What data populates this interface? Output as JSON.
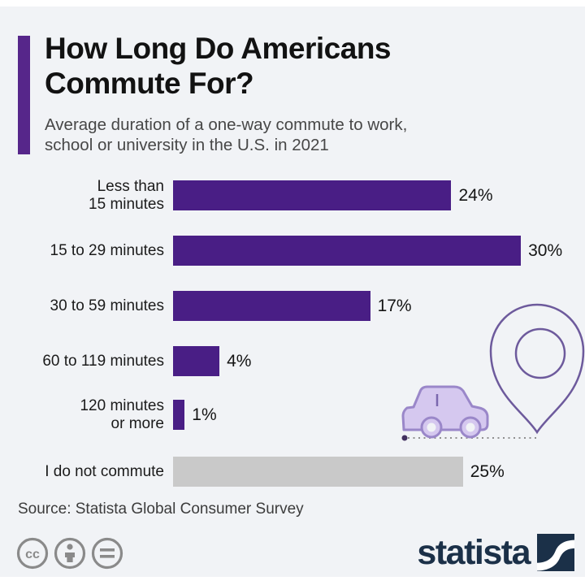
{
  "header": {
    "title": "How Long Do Americans\nCommute For?",
    "subtitle": "Average duration of a one-way commute to work,\nschool or university in the U.S. in 2021"
  },
  "chart_data": {
    "type": "bar",
    "orientation": "horizontal",
    "unit": "%",
    "categories": [
      "Less than 15 minutes",
      "15 to 29 minutes",
      "30 to 59 minutes",
      "60 to 119 minutes",
      "120 minutes or more",
      "I do not commute"
    ],
    "values": [
      24,
      30,
      17,
      4,
      1,
      25
    ],
    "xlim": [
      0,
      32
    ],
    "grid": false,
    "rows": [
      {
        "label": "Less than\n15 minutes",
        "value": 24,
        "display": "24%",
        "color": "#491e85"
      },
      {
        "label": "15 to 29 minutes",
        "value": 30,
        "display": "30%",
        "color": "#491e85"
      },
      {
        "label": "30 to 59 minutes",
        "value": 17,
        "display": "17%",
        "color": "#491e85"
      },
      {
        "label": "60 to 119 minutes",
        "value": 4,
        "display": "4%",
        "color": "#491e85"
      },
      {
        "label": "120 minutes\nor more",
        "value": 1,
        "display": "1%",
        "color": "#491e85"
      },
      {
        "label": "I do not commute",
        "value": 25,
        "display": "25%",
        "color": "#c9c9c9"
      }
    ]
  },
  "colors": {
    "background": "#f1f3f6",
    "bar_primary": "#491e85",
    "bar_muted": "#c9c9c9",
    "title_accent": "#56268a",
    "illustration_outline": "#6d5a9c",
    "car_fill": "#d5c8ef",
    "brand_navy": "#1b3048",
    "license_gray": "#8a8a8a"
  },
  "footer": {
    "source": "Source: Statista Global Consumer Survey",
    "brand": "statista",
    "license_icons": [
      "cc-icon",
      "attribution-icon",
      "no-derivatives-icon"
    ]
  }
}
